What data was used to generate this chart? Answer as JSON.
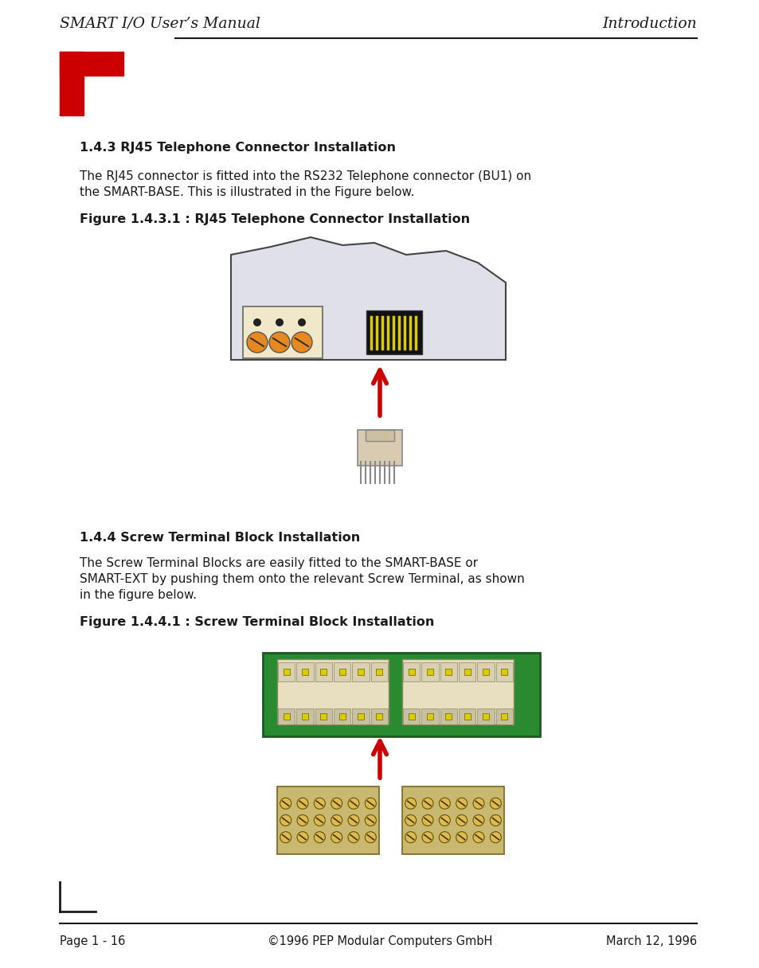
{
  "header_left": "SMART I/O User’s Manual",
  "header_right": "Introduction",
  "footer_left": "Page 1 - 16",
  "footer_center": "©1996 PEP Modular Computers GmbH",
  "footer_right": "March 12, 1996",
  "section1_title": "1.4.3 RJ45 Telephone Connector Installation",
  "section1_body1": "The RJ45 connector is fitted into the RS232 Telephone connector (BU1) on",
  "section1_body2": "the SMART-BASE. This is illustrated in the Figure below.",
  "figure1_caption": "Figure 1.4.3.1 : RJ45 Telephone Connector Installation",
  "section2_title": "1.4.4 Screw Terminal Block Installation",
  "section2_body1": "The Screw Terminal Blocks are easily fitted to the SMART-BASE or",
  "section2_body2": "SMART-EXT by pushing them onto the relevant Screw Terminal, as shown",
  "section2_body3": "in the figure below.",
  "figure2_caption": "Figure 1.4.4.1 : Screw Terminal Block Installation",
  "red_color": "#cc0000",
  "dark_color": "#1a1a1a",
  "bg_color": "#ffffff"
}
